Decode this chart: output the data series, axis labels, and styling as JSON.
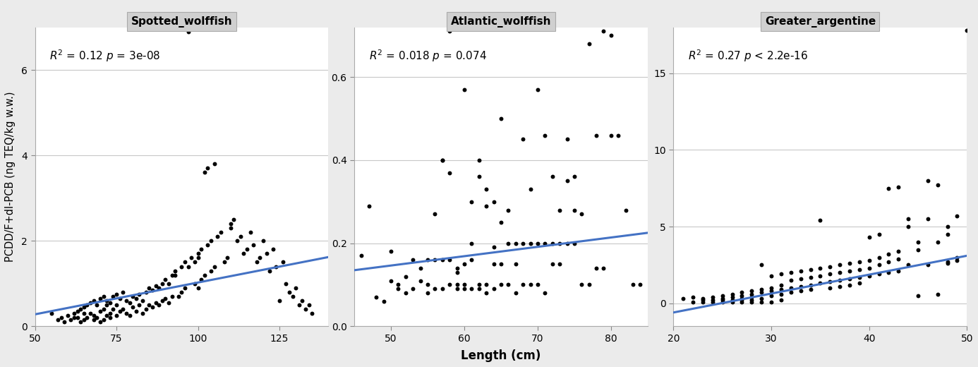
{
  "panels": [
    {
      "title": "Spotted_wolffish",
      "xlim": [
        50,
        140
      ],
      "ylim": [
        0,
        7
      ],
      "xticks": [
        50,
        75,
        100,
        125
      ],
      "yticks": [
        0,
        2,
        4,
        6
      ],
      "annotation": "italic:R^2: = 0.12 :italic:p: = 3e-08",
      "trend_x": [
        50,
        140
      ],
      "trend_y": [
        0.28,
        1.62
      ],
      "scatter_x": [
        55,
        57,
        58,
        59,
        60,
        61,
        62,
        62,
        63,
        63,
        64,
        64,
        65,
        65,
        65,
        66,
        66,
        67,
        67,
        68,
        68,
        68,
        69,
        69,
        70,
        70,
        70,
        71,
        71,
        71,
        72,
        72,
        72,
        73,
        73,
        73,
        74,
        74,
        75,
        75,
        75,
        76,
        76,
        77,
        77,
        78,
        78,
        79,
        79,
        80,
        80,
        81,
        81,
        82,
        82,
        83,
        83,
        84,
        84,
        85,
        85,
        86,
        86,
        87,
        87,
        88,
        88,
        89,
        89,
        90,
        90,
        91,
        91,
        92,
        92,
        93,
        93,
        94,
        95,
        95,
        96,
        96,
        97,
        97,
        98,
        99,
        99,
        100,
        100,
        100,
        101,
        101,
        102,
        102,
        103,
        103,
        104,
        104,
        105,
        105,
        106,
        107,
        108,
        109,
        110,
        110,
        111,
        112,
        113,
        114,
        115,
        116,
        117,
        118,
        119,
        120,
        121,
        122,
        123,
        124,
        125,
        126,
        127,
        128,
        129,
        130,
        131,
        132,
        133,
        134,
        135
      ],
      "scatter_y": [
        0.3,
        0.15,
        0.2,
        0.1,
        0.25,
        0.15,
        0.3,
        0.2,
        0.35,
        0.2,
        0.4,
        0.1,
        0.45,
        0.3,
        0.15,
        0.5,
        0.2,
        0.55,
        0.3,
        0.25,
        0.6,
        0.15,
        0.5,
        0.2,
        0.65,
        0.35,
        0.1,
        0.7,
        0.4,
        0.15,
        0.6,
        0.25,
        0.5,
        0.55,
        0.3,
        0.2,
        0.7,
        0.4,
        0.75,
        0.5,
        0.25,
        0.65,
        0.35,
        0.8,
        0.4,
        0.6,
        0.3,
        0.55,
        0.25,
        0.7,
        0.45,
        0.65,
        0.35,
        0.75,
        0.5,
        0.6,
        0.3,
        0.8,
        0.4,
        0.9,
        0.5,
        0.85,
        0.45,
        0.95,
        0.55,
        0.9,
        0.5,
        1.0,
        0.6,
        1.1,
        0.65,
        1.0,
        0.55,
        1.2,
        0.7,
        1.3,
        1.2,
        0.7,
        1.4,
        0.8,
        1.5,
        0.9,
        6.9,
        1.4,
        1.6,
        1.0,
        1.5,
        0.9,
        1.7,
        1.6,
        1.1,
        1.8,
        1.2,
        3.6,
        3.7,
        1.9,
        1.3,
        2.0,
        1.4,
        3.8,
        2.1,
        2.2,
        1.5,
        1.6,
        2.3,
        2.4,
        2.5,
        2.0,
        2.1,
        1.7,
        1.8,
        2.2,
        1.9,
        1.5,
        1.6,
        2.0,
        1.7,
        1.3,
        1.8,
        1.4,
        0.6,
        1.5,
        1.0,
        0.8,
        0.7,
        0.9,
        0.5,
        0.6,
        0.4,
        0.5,
        0.3
      ]
    },
    {
      "title": "Atlantic_wolffish",
      "xlim": [
        45,
        85
      ],
      "ylim": [
        0.0,
        0.72
      ],
      "xticks": [
        50,
        60,
        70,
        80
      ],
      "yticks": [
        0.0,
        0.2,
        0.4,
        0.6
      ],
      "annotation": "italic:R^2: = 0.018 :italic:p: = 0.074",
      "trend_x": [
        45,
        85
      ],
      "trend_y": [
        0.135,
        0.225
      ],
      "scatter_x": [
        46,
        47,
        48,
        49,
        50,
        50,
        51,
        51,
        52,
        52,
        53,
        53,
        54,
        54,
        55,
        55,
        55,
        56,
        56,
        56,
        57,
        57,
        57,
        57,
        58,
        58,
        58,
        58,
        59,
        59,
        59,
        59,
        60,
        60,
        60,
        60,
        61,
        61,
        61,
        61,
        62,
        62,
        62,
        62,
        63,
        63,
        63,
        63,
        64,
        64,
        64,
        64,
        65,
        65,
        65,
        65,
        66,
        66,
        66,
        67,
        67,
        67,
        68,
        68,
        68,
        69,
        69,
        69,
        70,
        70,
        70,
        71,
        71,
        71,
        72,
        72,
        72,
        73,
        73,
        73,
        74,
        74,
        74,
        75,
        75,
        75,
        76,
        76,
        77,
        77,
        78,
        78,
        79,
        79,
        80,
        80,
        81,
        82,
        83,
        84
      ],
      "scatter_y": [
        0.17,
        0.29,
        0.07,
        0.06,
        0.18,
        0.11,
        0.09,
        0.1,
        0.12,
        0.08,
        0.16,
        0.09,
        0.11,
        0.14,
        0.16,
        0.1,
        0.08,
        0.27,
        0.16,
        0.09,
        0.4,
        0.4,
        0.16,
        0.09,
        0.71,
        0.37,
        0.16,
        0.1,
        0.14,
        0.1,
        0.13,
        0.09,
        0.57,
        0.15,
        0.1,
        0.09,
        0.3,
        0.2,
        0.16,
        0.09,
        0.4,
        0.36,
        0.1,
        0.09,
        0.33,
        0.29,
        0.1,
        0.08,
        0.3,
        0.19,
        0.15,
        0.09,
        0.5,
        0.25,
        0.15,
        0.1,
        0.28,
        0.2,
        0.1,
        0.2,
        0.15,
        0.08,
        0.45,
        0.2,
        0.1,
        0.33,
        0.2,
        0.1,
        0.57,
        0.2,
        0.1,
        0.46,
        0.2,
        0.08,
        0.36,
        0.2,
        0.15,
        0.28,
        0.2,
        0.15,
        0.45,
        0.35,
        0.2,
        0.36,
        0.28,
        0.2,
        0.27,
        0.1,
        0.68,
        0.1,
        0.46,
        0.14,
        0.71,
        0.14,
        0.7,
        0.46,
        0.46,
        0.28,
        0.1,
        0.1
      ]
    },
    {
      "title": "Greater_argentine",
      "xlim": [
        20,
        50
      ],
      "ylim": [
        -1.5,
        18
      ],
      "xticks": [
        20,
        30,
        40,
        50
      ],
      "yticks": [
        0,
        5,
        10,
        15
      ],
      "annotation": "italic:R^2: = 0.27 :italic:p: < 2.2e-16",
      "trend_x": [
        20,
        50
      ],
      "trend_y": [
        -0.6,
        3.1
      ],
      "scatter_x": [
        21,
        22,
        22,
        23,
        23,
        23,
        24,
        24,
        24,
        25,
        25,
        25,
        25,
        26,
        26,
        26,
        26,
        27,
        27,
        27,
        27,
        27,
        28,
        28,
        28,
        28,
        28,
        29,
        29,
        29,
        29,
        29,
        30,
        30,
        30,
        30,
        30,
        31,
        31,
        31,
        31,
        31,
        32,
        32,
        32,
        32,
        33,
        33,
        33,
        33,
        34,
        34,
        34,
        34,
        35,
        35,
        35,
        35,
        36,
        36,
        36,
        36,
        37,
        37,
        37,
        37,
        38,
        38,
        38,
        38,
        39,
        39,
        39,
        39,
        40,
        40,
        40,
        40,
        41,
        41,
        41,
        41,
        42,
        42,
        42,
        42,
        43,
        43,
        43,
        43,
        44,
        44,
        44,
        45,
        45,
        45,
        46,
        46,
        46,
        47,
        47,
        47,
        48,
        48,
        48,
        48,
        49,
        49,
        49,
        50
      ],
      "scatter_y": [
        0.3,
        0.1,
        0.4,
        0.2,
        0.3,
        0.1,
        0.4,
        0.2,
        0.1,
        0.5,
        0.3,
        0.2,
        0.1,
        0.6,
        0.4,
        0.2,
        0.1,
        0.7,
        0.5,
        0.3,
        0.1,
        0.2,
        0.8,
        0.6,
        0.4,
        0.2,
        0.1,
        2.5,
        0.9,
        0.7,
        0.3,
        0.1,
        1.8,
        1.0,
        0.8,
        0.5,
        0.1,
        1.9,
        1.2,
        0.9,
        0.6,
        0.2,
        2.0,
        1.5,
        1.0,
        0.7,
        2.1,
        1.6,
        1.1,
        0.8,
        2.2,
        1.7,
        1.2,
        0.9,
        5.4,
        2.3,
        1.8,
        1.3,
        2.4,
        1.9,
        1.4,
        1.0,
        2.5,
        2.0,
        1.5,
        1.1,
        2.6,
        2.1,
        1.6,
        1.2,
        2.7,
        2.2,
        1.7,
        1.3,
        4.3,
        2.8,
        2.3,
        1.8,
        4.5,
        3.0,
        2.5,
        1.9,
        7.5,
        3.2,
        2.7,
        2.0,
        7.6,
        3.4,
        2.9,
        2.1,
        2.5,
        5.5,
        5.0,
        4.0,
        3.5,
        0.5,
        8.0,
        5.5,
        2.5,
        7.7,
        4.0,
        0.6,
        5.0,
        4.5,
        2.6,
        2.7,
        3.0,
        2.8,
        5.7,
        17.8
      ]
    }
  ],
  "ylabel": "PCDD/F+dl-PCB (ng TEQ/kg w.w.)",
  "xlabel": "Length (cm)",
  "panel_bg": "#ebebeb",
  "title_bg": "#d0d0d0",
  "plot_bg": "#ffffff",
  "scatter_color": "#000000",
  "trend_color": "#4472c4",
  "grid_color": "#c8c8c8",
  "scatter_size": 18,
  "trend_lw": 2.2
}
